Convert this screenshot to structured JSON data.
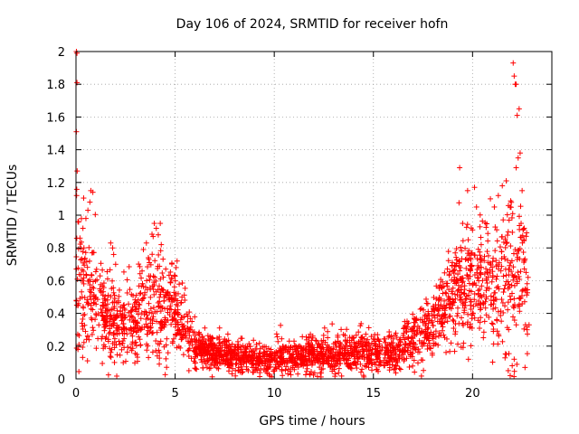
{
  "chart_data": {
    "type": "scatter",
    "title": "Day 106 of 2024, SRMTID for receiver hofn",
    "xlabel": "GPS time / hours",
    "ylabel": "SRMTID / TECUs",
    "xlim": [
      0,
      24
    ],
    "ylim": [
      0,
      2
    ],
    "xticks": [
      0,
      5,
      10,
      15,
      20
    ],
    "xtick_labels": [
      "0",
      "5",
      "10",
      "15",
      "20"
    ],
    "yticks": [
      0,
      0.2,
      0.4,
      0.6,
      0.8,
      1,
      1.2,
      1.4,
      1.6,
      1.8,
      2
    ],
    "ytick_labels": [
      "0",
      "0.2",
      "0.4",
      "0.6",
      "0.8",
      "1",
      "1.2",
      "1.4",
      "1.6",
      "1.8",
      "2"
    ],
    "grid": true,
    "marker": "+",
    "color": "#ff0000",
    "series": [
      {
        "name": "SRMTID",
        "profile": [
          [
            0.0,
            0.55,
            0.28
          ],
          [
            0.5,
            0.55,
            0.22
          ],
          [
            1.0,
            0.45,
            0.15
          ],
          [
            1.5,
            0.4,
            0.14
          ],
          [
            2.0,
            0.33,
            0.12
          ],
          [
            2.5,
            0.32,
            0.12
          ],
          [
            3.0,
            0.35,
            0.14
          ],
          [
            3.5,
            0.42,
            0.16
          ],
          [
            4.0,
            0.45,
            0.18
          ],
          [
            4.5,
            0.42,
            0.14
          ],
          [
            5.0,
            0.45,
            0.12
          ],
          [
            5.5,
            0.28,
            0.1
          ],
          [
            6.0,
            0.2,
            0.07
          ],
          [
            7.0,
            0.15,
            0.05
          ],
          [
            8.0,
            0.14,
            0.05
          ],
          [
            9.0,
            0.12,
            0.05
          ],
          [
            10.0,
            0.12,
            0.05
          ],
          [
            11.0,
            0.14,
            0.05
          ],
          [
            12.0,
            0.15,
            0.06
          ],
          [
            13.0,
            0.15,
            0.06
          ],
          [
            14.0,
            0.16,
            0.06
          ],
          [
            15.0,
            0.17,
            0.06
          ],
          [
            16.0,
            0.16,
            0.06
          ],
          [
            16.5,
            0.2,
            0.07
          ],
          [
            17.0,
            0.25,
            0.08
          ],
          [
            18.0,
            0.32,
            0.1
          ],
          [
            18.5,
            0.45,
            0.14
          ],
          [
            19.0,
            0.52,
            0.16
          ],
          [
            20.0,
            0.55,
            0.18
          ],
          [
            20.5,
            0.6,
            0.18
          ],
          [
            21.0,
            0.62,
            0.2
          ],
          [
            21.5,
            0.6,
            0.22
          ],
          [
            22.0,
            0.7,
            0.3
          ],
          [
            22.5,
            0.65,
            0.25
          ],
          [
            22.8,
            0.5,
            0.2
          ]
        ],
        "points": [
          [
            0.02,
            2.0
          ],
          [
            0.05,
            1.99
          ],
          [
            0.05,
            1.81
          ],
          [
            0.02,
            1.51
          ],
          [
            0.06,
            1.27
          ],
          [
            0.03,
            1.12
          ],
          [
            0.1,
            0.96
          ],
          [
            0.2,
            0.86
          ],
          [
            0.35,
            0.92
          ],
          [
            0.5,
            0.98
          ],
          [
            0.6,
            1.03
          ],
          [
            0.7,
            1.08
          ],
          [
            0.75,
            1.15
          ],
          [
            0.85,
            1.14
          ],
          [
            0.4,
            0.8
          ],
          [
            0.15,
            0.21
          ],
          [
            0.1,
            0.18
          ],
          [
            0.3,
            0.34
          ],
          [
            1.75,
            0.83
          ],
          [
            1.85,
            0.8
          ],
          [
            1.9,
            0.76
          ],
          [
            2.0,
            0.7
          ],
          [
            3.4,
            0.79
          ],
          [
            3.55,
            0.83
          ],
          [
            3.65,
            0.74
          ],
          [
            3.7,
            0.71
          ],
          [
            3.95,
            0.95
          ],
          [
            4.05,
            0.92
          ],
          [
            4.25,
            0.95
          ],
          [
            4.15,
            0.88
          ],
          [
            4.3,
            0.82
          ],
          [
            4.2,
            0.09
          ],
          [
            4.1,
            0.14
          ],
          [
            5.05,
            0.68
          ],
          [
            5.1,
            0.72
          ],
          [
            19.35,
            1.29
          ],
          [
            19.5,
            0.95
          ],
          [
            19.75,
            1.15
          ],
          [
            20.1,
            1.17
          ],
          [
            20.2,
            1.05
          ],
          [
            20.9,
            1.1
          ],
          [
            21.1,
            1.05
          ],
          [
            21.3,
            1.12
          ],
          [
            21.5,
            1.18
          ],
          [
            21.7,
            1.21
          ],
          [
            21.9,
            1.05
          ],
          [
            22.05,
            1.93
          ],
          [
            22.1,
            1.85
          ],
          [
            22.15,
            1.8
          ],
          [
            22.2,
            1.8
          ],
          [
            22.25,
            1.61
          ],
          [
            22.35,
            1.65
          ],
          [
            22.3,
            1.35
          ],
          [
            22.4,
            1.38
          ],
          [
            22.2,
            1.29
          ],
          [
            22.5,
            1.15
          ],
          [
            22.45,
            0.95
          ],
          [
            22.6,
            0.85
          ],
          [
            21.9,
            0.02
          ],
          [
            21.8,
            0.05
          ],
          [
            22.0,
            0.08
          ],
          [
            22.1,
            0.12
          ],
          [
            21.7,
            0.15
          ],
          [
            22.7,
            0.65
          ],
          [
            22.8,
            0.62
          ],
          [
            22.75,
            0.3
          ],
          [
            22.85,
            0.33
          ]
        ],
        "n_generated": 2600,
        "seed": 106
      }
    ]
  }
}
